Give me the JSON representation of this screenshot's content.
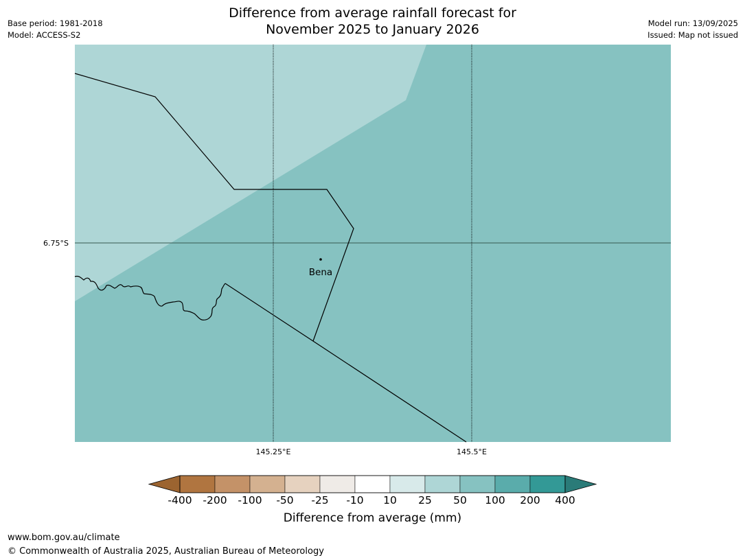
{
  "title_line1": "Difference from average rainfall forecast for",
  "title_line2": "November 2025 to January 2026",
  "base_period": "Base period: 1981-2018",
  "model": "Model: ACCESS-S2",
  "model_run": "Model run: 13/09/2025",
  "issued": "Issued: Map not issued",
  "map": {
    "lat_ticks": [
      {
        "label": "6.75°S"
      }
    ],
    "lon_ticks": [
      {
        "label": "145.25°E"
      },
      {
        "label": "145.5°E"
      }
    ],
    "place": {
      "name": "Bena"
    },
    "colors": {
      "light_band": "#aed6d6",
      "main_band": "#86c2c1",
      "border": "#000000"
    }
  },
  "colorbar": {
    "labels": [
      "-400",
      "-200",
      "-100",
      "-50",
      "-25",
      "-10",
      "10",
      "25",
      "50",
      "100",
      "200",
      "400"
    ],
    "colors": [
      "#9c6430",
      "#b07540",
      "#c49268",
      "#d4b190",
      "#e6d2bf",
      "#efebe7",
      "#ffffff",
      "#d8eaea",
      "#aed6d6",
      "#86c2c1",
      "#5aacab",
      "#339996",
      "#2a7b78"
    ],
    "title": "Difference from average (mm)"
  },
  "footer": {
    "url": "www.bom.gov.au/climate",
    "copyright": "© Commonwealth of Australia 2025, Australian Bureau of Meteorology"
  }
}
